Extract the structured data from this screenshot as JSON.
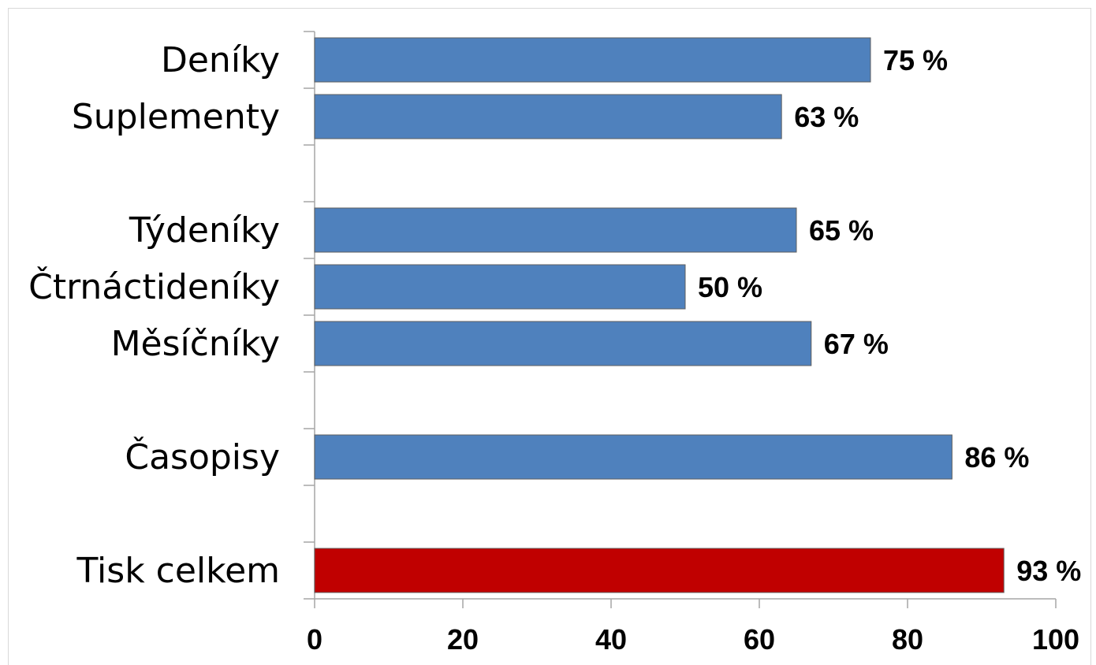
{
  "chart_data": {
    "type": "bar",
    "orientation": "horizontal",
    "title": "",
    "xlabel": "",
    "ylabel": "",
    "xlim": [
      0,
      100
    ],
    "x_ticks": [
      "0",
      "20",
      "40",
      "60",
      "80",
      "100"
    ],
    "grid": false,
    "legend": "none",
    "value_suffix": " %",
    "categories": [
      {
        "label": "Deníky",
        "value": 75,
        "color": "#4f81bd",
        "slot": 0
      },
      {
        "label": "Suplementy",
        "value": 63,
        "color": "#4f81bd",
        "slot": 1
      },
      {
        "label": "Týdeníky",
        "value": 65,
        "color": "#4f81bd",
        "slot": 3
      },
      {
        "label": "Čtrnáctideníky",
        "value": 50,
        "color": "#4f81bd",
        "slot": 4
      },
      {
        "label": "Měsíčníky",
        "value": 67,
        "color": "#4f81bd",
        "slot": 5
      },
      {
        "label": "Časopisy",
        "value": 86,
        "color": "#4f81bd",
        "slot": 7
      },
      {
        "label": "Tisk celkem",
        "value": 93,
        "color": "#c00000",
        "slot": 9
      }
    ]
  }
}
